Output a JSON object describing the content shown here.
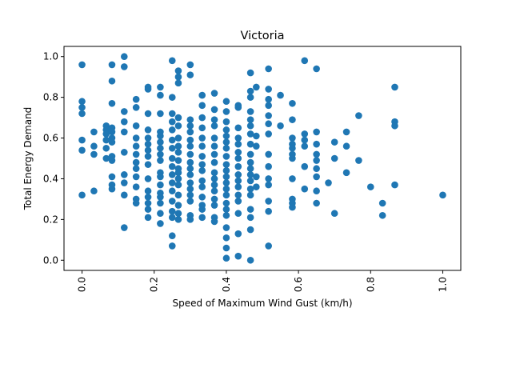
{
  "chart_data": {
    "type": "scatter",
    "title": "Victoria",
    "xlabel": "Speed of Maximum Wind Gust (km/h)",
    "ylabel": "Total Energy Demand",
    "xlim": [
      -0.05,
      1.05
    ],
    "ylim": [
      -0.05,
      1.05
    ],
    "xticks": [
      "0.0",
      "0.2",
      "0.4",
      "0.6",
      "0.8",
      "1.0"
    ],
    "yticks": [
      "0.0",
      "0.2",
      "0.4",
      "0.6",
      "0.8",
      "1.0"
    ],
    "marker_color": "#1f77b4",
    "grid": false,
    "series": [
      {
        "points": [
          [
            0.0,
            0.96
          ],
          [
            0.0,
            0.78
          ],
          [
            0.0,
            0.75
          ],
          [
            0.0,
            0.72
          ],
          [
            0.0,
            0.59
          ],
          [
            0.0,
            0.54
          ],
          [
            0.0,
            0.32
          ],
          [
            0.033,
            0.63
          ],
          [
            0.033,
            0.56
          ],
          [
            0.033,
            0.52
          ],
          [
            0.033,
            0.34
          ],
          [
            0.067,
            0.66
          ],
          [
            0.067,
            0.64
          ],
          [
            0.067,
            0.62
          ],
          [
            0.067,
            0.59
          ],
          [
            0.067,
            0.55
          ],
          [
            0.067,
            0.5
          ],
          [
            0.083,
            0.96
          ],
          [
            0.083,
            0.88
          ],
          [
            0.083,
            0.77
          ],
          [
            0.083,
            0.65
          ],
          [
            0.083,
            0.63
          ],
          [
            0.083,
            0.6
          ],
          [
            0.083,
            0.58
          ],
          [
            0.083,
            0.51
          ],
          [
            0.083,
            0.49
          ],
          [
            0.083,
            0.41
          ],
          [
            0.083,
            0.37
          ],
          [
            0.083,
            0.35
          ],
          [
            0.117,
            1.0
          ],
          [
            0.117,
            0.95
          ],
          [
            0.117,
            0.73
          ],
          [
            0.117,
            0.68
          ],
          [
            0.117,
            0.63
          ],
          [
            0.117,
            0.53
          ],
          [
            0.117,
            0.42
          ],
          [
            0.117,
            0.38
          ],
          [
            0.117,
            0.32
          ],
          [
            0.117,
            0.16
          ],
          [
            0.15,
            0.79
          ],
          [
            0.15,
            0.75
          ],
          [
            0.15,
            0.66
          ],
          [
            0.15,
            0.6
          ],
          [
            0.15,
            0.56
          ],
          [
            0.15,
            0.52
          ],
          [
            0.15,
            0.48
          ],
          [
            0.15,
            0.45
          ],
          [
            0.15,
            0.41
          ],
          [
            0.15,
            0.36
          ],
          [
            0.15,
            0.3
          ],
          [
            0.15,
            0.28
          ],
          [
            0.183,
            0.85
          ],
          [
            0.183,
            0.84
          ],
          [
            0.183,
            0.72
          ],
          [
            0.183,
            0.64
          ],
          [
            0.183,
            0.6
          ],
          [
            0.183,
            0.57
          ],
          [
            0.183,
            0.54
          ],
          [
            0.183,
            0.51
          ],
          [
            0.183,
            0.47
          ],
          [
            0.183,
            0.4
          ],
          [
            0.183,
            0.34
          ],
          [
            0.183,
            0.31
          ],
          [
            0.183,
            0.28
          ],
          [
            0.183,
            0.25
          ],
          [
            0.183,
            0.21
          ],
          [
            0.217,
            0.85
          ],
          [
            0.217,
            0.81
          ],
          [
            0.217,
            0.72
          ],
          [
            0.217,
            0.63
          ],
          [
            0.217,
            0.61
          ],
          [
            0.217,
            0.58
          ],
          [
            0.217,
            0.55
          ],
          [
            0.217,
            0.52
          ],
          [
            0.217,
            0.49
          ],
          [
            0.217,
            0.43
          ],
          [
            0.217,
            0.41
          ],
          [
            0.217,
            0.37
          ],
          [
            0.217,
            0.33
          ],
          [
            0.217,
            0.31
          ],
          [
            0.217,
            0.28
          ],
          [
            0.217,
            0.23
          ],
          [
            0.217,
            0.18
          ],
          [
            0.25,
            0.98
          ],
          [
            0.25,
            0.8
          ],
          [
            0.25,
            0.72
          ],
          [
            0.25,
            0.68
          ],
          [
            0.25,
            0.64
          ],
          [
            0.25,
            0.59
          ],
          [
            0.25,
            0.55
          ],
          [
            0.25,
            0.5
          ],
          [
            0.25,
            0.46
          ],
          [
            0.25,
            0.42
          ],
          [
            0.25,
            0.38
          ],
          [
            0.25,
            0.34
          ],
          [
            0.25,
            0.29
          ],
          [
            0.25,
            0.24
          ],
          [
            0.25,
            0.21
          ],
          [
            0.25,
            0.12
          ],
          [
            0.25,
            0.07
          ],
          [
            0.267,
            0.93
          ],
          [
            0.267,
            0.9
          ],
          [
            0.267,
            0.87
          ],
          [
            0.267,
            0.7
          ],
          [
            0.267,
            0.66
          ],
          [
            0.267,
            0.6
          ],
          [
            0.267,
            0.56
          ],
          [
            0.267,
            0.53
          ],
          [
            0.267,
            0.49
          ],
          [
            0.267,
            0.45
          ],
          [
            0.267,
            0.43
          ],
          [
            0.267,
            0.4
          ],
          [
            0.267,
            0.37
          ],
          [
            0.267,
            0.32
          ],
          [
            0.267,
            0.27
          ],
          [
            0.267,
            0.23
          ],
          [
            0.267,
            0.2
          ],
          [
            0.3,
            0.96
          ],
          [
            0.3,
            0.91
          ],
          [
            0.3,
            0.69
          ],
          [
            0.3,
            0.66
          ],
          [
            0.3,
            0.63
          ],
          [
            0.3,
            0.59
          ],
          [
            0.3,
            0.56
          ],
          [
            0.3,
            0.52
          ],
          [
            0.3,
            0.48
          ],
          [
            0.3,
            0.45
          ],
          [
            0.3,
            0.42
          ],
          [
            0.3,
            0.38
          ],
          [
            0.3,
            0.35
          ],
          [
            0.3,
            0.32
          ],
          [
            0.3,
            0.29
          ],
          [
            0.3,
            0.22
          ],
          [
            0.3,
            0.2
          ],
          [
            0.333,
            0.81
          ],
          [
            0.333,
            0.76
          ],
          [
            0.333,
            0.7
          ],
          [
            0.333,
            0.65
          ],
          [
            0.333,
            0.6
          ],
          [
            0.333,
            0.56
          ],
          [
            0.333,
            0.51
          ],
          [
            0.333,
            0.47
          ],
          [
            0.333,
            0.44
          ],
          [
            0.333,
            0.39
          ],
          [
            0.333,
            0.36
          ],
          [
            0.333,
            0.31
          ],
          [
            0.333,
            0.27
          ],
          [
            0.333,
            0.25
          ],
          [
            0.333,
            0.21
          ],
          [
            0.367,
            0.82
          ],
          [
            0.367,
            0.74
          ],
          [
            0.367,
            0.69
          ],
          [
            0.367,
            0.66
          ],
          [
            0.367,
            0.6
          ],
          [
            0.367,
            0.56
          ],
          [
            0.367,
            0.52
          ],
          [
            0.367,
            0.48
          ],
          [
            0.367,
            0.43
          ],
          [
            0.367,
            0.4
          ],
          [
            0.367,
            0.37
          ],
          [
            0.367,
            0.34
          ],
          [
            0.367,
            0.3
          ],
          [
            0.367,
            0.27
          ],
          [
            0.367,
            0.21
          ],
          [
            0.367,
            0.19
          ],
          [
            0.4,
            0.78
          ],
          [
            0.4,
            0.73
          ],
          [
            0.4,
            0.68
          ],
          [
            0.4,
            0.64
          ],
          [
            0.4,
            0.61
          ],
          [
            0.4,
            0.58
          ],
          [
            0.4,
            0.55
          ],
          [
            0.4,
            0.51
          ],
          [
            0.4,
            0.47
          ],
          [
            0.4,
            0.44
          ],
          [
            0.4,
            0.41
          ],
          [
            0.4,
            0.38
          ],
          [
            0.4,
            0.35
          ],
          [
            0.4,
            0.32
          ],
          [
            0.4,
            0.28
          ],
          [
            0.4,
            0.25
          ],
          [
            0.4,
            0.22
          ],
          [
            0.4,
            0.16
          ],
          [
            0.4,
            0.11
          ],
          [
            0.4,
            0.06
          ],
          [
            0.4,
            0.01
          ],
          [
            0.433,
            0.76
          ],
          [
            0.433,
            0.75
          ],
          [
            0.433,
            0.65
          ],
          [
            0.433,
            0.6
          ],
          [
            0.433,
            0.57
          ],
          [
            0.433,
            0.53
          ],
          [
            0.433,
            0.5
          ],
          [
            0.433,
            0.46
          ],
          [
            0.433,
            0.42
          ],
          [
            0.433,
            0.39
          ],
          [
            0.433,
            0.36
          ],
          [
            0.433,
            0.32
          ],
          [
            0.433,
            0.29
          ],
          [
            0.433,
            0.23
          ],
          [
            0.433,
            0.13
          ],
          [
            0.433,
            0.02
          ],
          [
            0.467,
            0.92
          ],
          [
            0.467,
            0.83
          ],
          [
            0.467,
            0.8
          ],
          [
            0.467,
            0.73
          ],
          [
            0.467,
            0.69
          ],
          [
            0.467,
            0.66
          ],
          [
            0.467,
            0.62
          ],
          [
            0.467,
            0.57
          ],
          [
            0.467,
            0.52
          ],
          [
            0.467,
            0.48
          ],
          [
            0.467,
            0.45
          ],
          [
            0.467,
            0.42
          ],
          [
            0.467,
            0.39
          ],
          [
            0.467,
            0.35
          ],
          [
            0.467,
            0.32
          ],
          [
            0.467,
            0.25
          ],
          [
            0.467,
            0.21
          ],
          [
            0.467,
            0.15
          ],
          [
            0.467,
            0.0
          ],
          [
            0.483,
            0.85
          ],
          [
            0.483,
            0.61
          ],
          [
            0.483,
            0.56
          ],
          [
            0.483,
            0.41
          ],
          [
            0.483,
            0.36
          ],
          [
            0.517,
            0.94
          ],
          [
            0.517,
            0.84
          ],
          [
            0.517,
            0.79
          ],
          [
            0.517,
            0.76
          ],
          [
            0.517,
            0.71
          ],
          [
            0.517,
            0.67
          ],
          [
            0.517,
            0.62
          ],
          [
            0.517,
            0.52
          ],
          [
            0.517,
            0.46
          ],
          [
            0.517,
            0.4
          ],
          [
            0.517,
            0.37
          ],
          [
            0.517,
            0.29
          ],
          [
            0.517,
            0.24
          ],
          [
            0.517,
            0.07
          ],
          [
            0.55,
            0.81
          ],
          [
            0.55,
            0.66
          ],
          [
            0.583,
            0.77
          ],
          [
            0.583,
            0.69
          ],
          [
            0.583,
            0.6
          ],
          [
            0.583,
            0.57
          ],
          [
            0.583,
            0.55
          ],
          [
            0.583,
            0.52
          ],
          [
            0.583,
            0.5
          ],
          [
            0.583,
            0.4
          ],
          [
            0.583,
            0.3
          ],
          [
            0.583,
            0.28
          ],
          [
            0.583,
            0.26
          ],
          [
            0.617,
            0.98
          ],
          [
            0.617,
            0.62
          ],
          [
            0.617,
            0.59
          ],
          [
            0.617,
            0.56
          ],
          [
            0.617,
            0.46
          ],
          [
            0.617,
            0.35
          ],
          [
            0.65,
            0.94
          ],
          [
            0.65,
            0.63
          ],
          [
            0.65,
            0.57
          ],
          [
            0.65,
            0.52
          ],
          [
            0.65,
            0.49
          ],
          [
            0.65,
            0.45
          ],
          [
            0.65,
            0.41
          ],
          [
            0.65,
            0.34
          ],
          [
            0.65,
            0.28
          ],
          [
            0.683,
            0.38
          ],
          [
            0.7,
            0.58
          ],
          [
            0.7,
            0.5
          ],
          [
            0.7,
            0.23
          ],
          [
            0.733,
            0.63
          ],
          [
            0.733,
            0.56
          ],
          [
            0.733,
            0.43
          ],
          [
            0.767,
            0.71
          ],
          [
            0.767,
            0.49
          ],
          [
            0.8,
            0.36
          ],
          [
            0.833,
            0.28
          ],
          [
            0.833,
            0.22
          ],
          [
            0.867,
            0.85
          ],
          [
            0.867,
            0.68
          ],
          [
            0.867,
            0.66
          ],
          [
            0.867,
            0.37
          ],
          [
            1.0,
            0.32
          ]
        ]
      }
    ]
  }
}
